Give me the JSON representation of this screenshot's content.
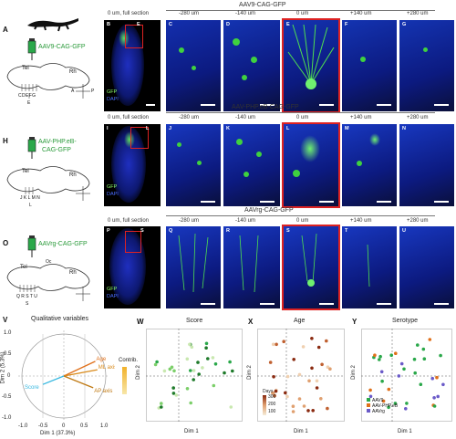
{
  "panel_letters": {
    "A": "A",
    "B": "B",
    "C": "C",
    "D": "D",
    "E": "E",
    "F": "F",
    "G": "G",
    "H": "H",
    "I": "I",
    "J": "J",
    "K": "K",
    "L": "L",
    "M": "M",
    "N": "N",
    "O": "O",
    "P": "P",
    "Q": "Q",
    "R": "R",
    "S": "S",
    "T": "T",
    "U": "U",
    "V": "V",
    "W": "W",
    "X": "X",
    "Y": "Y"
  },
  "rows": [
    {
      "header": "AAV9-CAG-GFP",
      "vector": "AAV9-CAG-GFP",
      "letters": "B C D E F G",
      "schematic_letters": "C D E F G",
      "schematic_e": "E"
    },
    {
      "header": "AAV-PHP.eB-CAG-GFP",
      "vector_line1": "AAV-PHP.eB-",
      "vector_line2": "CAG-GFP",
      "schematic_letters": "J K L M N",
      "schematic_l": "L"
    },
    {
      "header": "AAVrg-CAG-GFP",
      "vector": "AAVrg-CAG-GFP",
      "schematic_letters": "Q R S T U",
      "schematic_s": "S"
    }
  ],
  "column_labels": [
    "0 um, full section",
    "-280 um",
    "-140 um",
    "0 um",
    "+140 um",
    "+280 um"
  ],
  "stain_labels": {
    "gfp": "GFP",
    "dapi": "DAPI"
  },
  "brain_labels": {
    "tel": "Tel",
    "rh": "Rh",
    "oc": "Oc"
  },
  "compass": {
    "a": "A",
    "p": "P",
    "d": "D",
    "v": "V"
  },
  "pca": {
    "title": "Qualitative variables",
    "xlabel": "Dim 1 (37.3%)",
    "ylabel": "Dim 2 (5.3%)",
    "contrib_label": "Contrib.",
    "vectors": [
      {
        "name": "Age",
        "x": 0.75,
        "y": 0.35
      },
      {
        "name": "ML axis",
        "x": 0.8,
        "y": 0.15
      },
      {
        "name": "AP axis",
        "x": 0.7,
        "y": -0.28
      },
      {
        "name": "Score",
        "x": -0.5,
        "y": -0.2
      }
    ],
    "xticks": [
      "-1.0",
      "-0.5",
      "0",
      "0.5",
      "1.0"
    ],
    "yticks": [
      "1.0",
      "0.5",
      "0",
      "-0.5",
      "-1.0"
    ]
  },
  "scatters": [
    {
      "title": "Score",
      "xlabel": "Dim 1",
      "ylabel": "Dim 2"
    },
    {
      "title": "Age",
      "xlabel": "Dim 1",
      "ylabel": "Dim 2",
      "legend_title": "Days",
      "legend_vals": [
        "300",
        "200",
        "100"
      ]
    },
    {
      "title": "Serotype",
      "xlabel": "Dim 1",
      "ylabel": "Dim 2",
      "legend": [
        "AAV9",
        "AAV-PHP.eB",
        "AAVrg"
      ]
    }
  ],
  "scatter_ticks_x": [
    "-3",
    "0",
    "3",
    "6"
  ],
  "scatter_ticks_y": [
    "2",
    "0",
    "-2"
  ],
  "colors": {
    "gfp": "#3fd13f",
    "dapi": "#0a1a7a",
    "highlight": "#d22222",
    "age": "#e0701a",
    "ml": "#d98a1a",
    "ap": "#c07a14",
    "score": "#36b8e0"
  }
}
